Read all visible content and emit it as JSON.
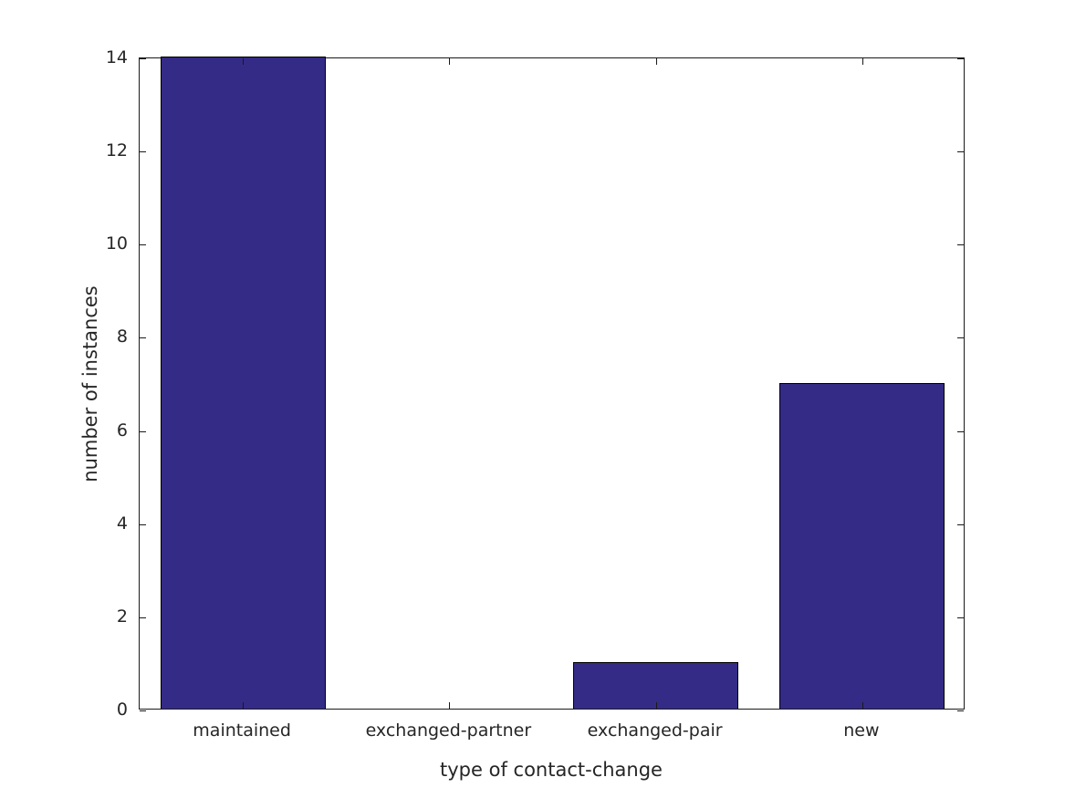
{
  "chart_data": {
    "type": "bar",
    "title": "",
    "categories": [
      "maintained",
      "exchanged-partner",
      "exchanged-pair",
      "new"
    ],
    "values": [
      14,
      0,
      1,
      7
    ],
    "xlabel": "type of contact-change",
    "ylabel": "number of instances",
    "ylim": [
      0,
      14
    ],
    "yticks": [
      0,
      2,
      4,
      6,
      8,
      10,
      12,
      14
    ],
    "grid": false,
    "legend": "none",
    "bar_fill_color": "#342B86",
    "bar_edge_color": "#000000",
    "axis_color": "#1a1a1a",
    "text_color": "#262626",
    "background_color": "#ffffff",
    "bar_width_fraction": 0.8,
    "tick_style": "inward-all-sides"
  }
}
